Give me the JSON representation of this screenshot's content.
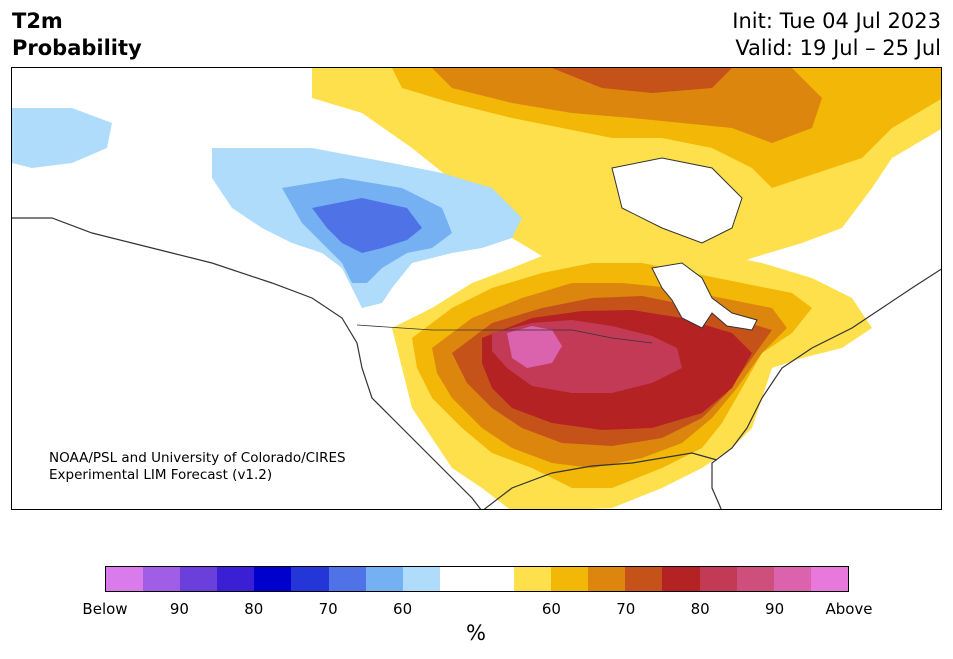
{
  "header": {
    "title_line1": "T2m",
    "title_line2": "Probability",
    "init_text": "Init: Tue 04 Jul 2023",
    "valid_text": "Valid: 19 Jul – 25 Jul"
  },
  "map": {
    "region": "North America",
    "credit_line1": "NOAA/PSL and University of Colorado/CIRES",
    "credit_line2": "Experimental LIM Forecast (v1.2)"
  },
  "colorbar": {
    "colors": [
      "#d97bea",
      "#a05ee6",
      "#6b3fdc",
      "#3a1fd4",
      "#0000cc",
      "#2436d8",
      "#4f72e6",
      "#74b0f2",
      "#aedcfa",
      "#ffffff",
      "#ffffff",
      "#fde04b",
      "#f2b707",
      "#dc860e",
      "#c55219",
      "#b42224",
      "#c23a55",
      "#cf4f7c",
      "#db62ad",
      "#e878dc"
    ],
    "labels": [
      "Below",
      "90",
      "80",
      "70",
      "60",
      "60",
      "70",
      "80",
      "90",
      "Above"
    ],
    "unit": "%"
  }
}
